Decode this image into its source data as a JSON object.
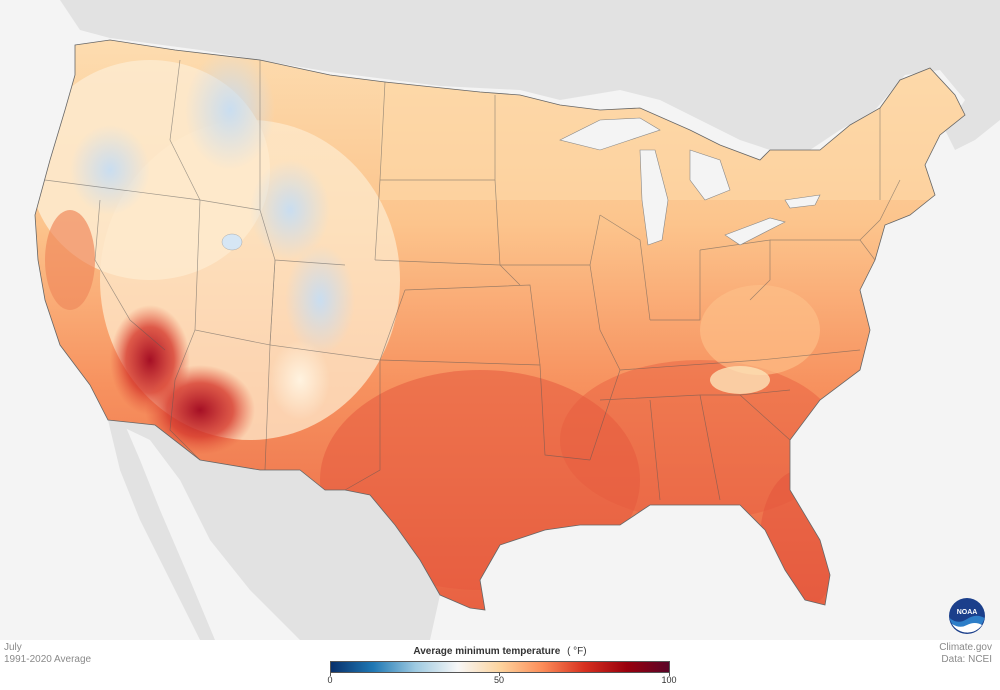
{
  "footer": {
    "month": "July",
    "period": "1991-2020 Average",
    "source_site": "Climate.gov",
    "source_data": "Data: NCEI"
  },
  "legend": {
    "title": "Average minimum temperature",
    "unit": "( °F)",
    "ticks": [
      "0",
      "50",
      "100"
    ],
    "colors": [
      "#08306b",
      "#1f78b4",
      "#9ecae1",
      "#f7f7f7",
      "#fdd49e",
      "#fc8d59",
      "#d7301f",
      "#99000d",
      "#5a0528"
    ]
  },
  "logo": {
    "text": "NOAA"
  },
  "map": {
    "colors": {
      "ocean": "#f4f4f4",
      "land_other": "#e2e2e2",
      "cool_blue": "#c6dbef",
      "near_50": "#fdf3e0",
      "warm_light": "#fdd49e",
      "warm_mid": "#fdae6b",
      "warm": "#f4845a",
      "hot": "#e4573d",
      "hottest": "#b2182b"
    }
  }
}
